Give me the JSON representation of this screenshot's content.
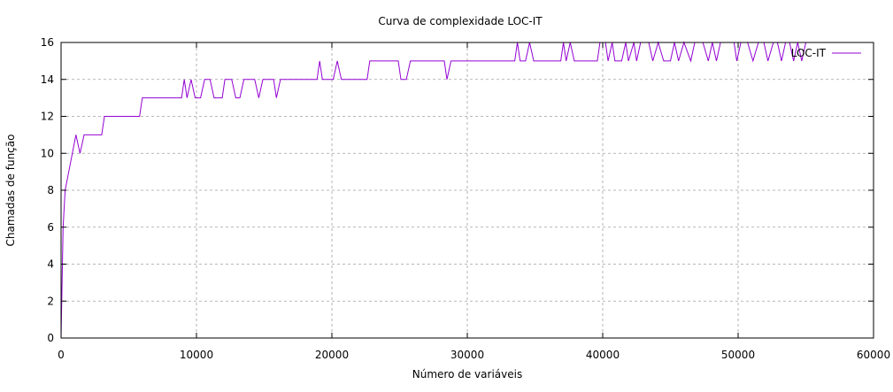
{
  "chart_data": {
    "type": "line",
    "title": "Curva de complexidade LOC-IT",
    "xlabel": "Número de variáveis",
    "ylabel": "Chamadas de função",
    "xlim": [
      0,
      60000
    ],
    "ylim": [
      0,
      16
    ],
    "xticks": [
      0,
      10000,
      20000,
      30000,
      40000,
      50000,
      60000
    ],
    "yticks": [
      0,
      2,
      4,
      6,
      8,
      10,
      12,
      14,
      16
    ],
    "xtick_labels": [
      "0",
      "10000",
      "20000",
      "30000",
      "40000",
      "50000",
      "60000"
    ],
    "ytick_labels": [
      "0",
      "2",
      "4",
      "6",
      "8",
      "10",
      "12",
      "14",
      "16"
    ],
    "grid": true,
    "legend_position": "top-right",
    "series": [
      {
        "name": "LOC-IT",
        "color": "#9400d3",
        "points": [
          [
            0,
            0
          ],
          [
            150,
            6
          ],
          [
            300,
            8
          ],
          [
            700,
            9.5
          ],
          [
            1100,
            11
          ],
          [
            1400,
            10
          ],
          [
            1700,
            11
          ],
          [
            3000,
            11
          ],
          [
            3200,
            12
          ],
          [
            5800,
            12
          ],
          [
            6000,
            13
          ],
          [
            8900,
            13
          ],
          [
            9100,
            14
          ],
          [
            9300,
            13
          ],
          [
            9600,
            14
          ],
          [
            9900,
            13
          ],
          [
            10300,
            13
          ],
          [
            10600,
            14
          ],
          [
            11000,
            14
          ],
          [
            11300,
            13
          ],
          [
            11900,
            13
          ],
          [
            12100,
            14
          ],
          [
            12600,
            14
          ],
          [
            12900,
            13
          ],
          [
            13200,
            13
          ],
          [
            13500,
            14
          ],
          [
            14300,
            14
          ],
          [
            14600,
            13
          ],
          [
            14900,
            14
          ],
          [
            15700,
            14
          ],
          [
            15900,
            13
          ],
          [
            16200,
            14
          ],
          [
            18900,
            14
          ],
          [
            19100,
            15
          ],
          [
            19300,
            14
          ],
          [
            20100,
            14
          ],
          [
            20400,
            15
          ],
          [
            20700,
            14
          ],
          [
            22600,
            14
          ],
          [
            22800,
            15
          ],
          [
            24900,
            15
          ],
          [
            25100,
            14
          ],
          [
            25500,
            14
          ],
          [
            25800,
            15
          ],
          [
            28300,
            15
          ],
          [
            28500,
            14
          ],
          [
            28800,
            15
          ],
          [
            33500,
            15
          ],
          [
            33700,
            16
          ],
          [
            33900,
            15
          ],
          [
            34300,
            15
          ],
          [
            34600,
            16
          ],
          [
            34900,
            15
          ],
          [
            36900,
            15
          ],
          [
            37100,
            16
          ],
          [
            37300,
            15
          ],
          [
            37600,
            16
          ],
          [
            37900,
            15
          ],
          [
            39600,
            15
          ],
          [
            39800,
            16
          ],
          [
            40200,
            16
          ],
          [
            40400,
            15
          ],
          [
            40700,
            16
          ],
          [
            40900,
            15
          ],
          [
            41400,
            15
          ],
          [
            41700,
            16
          ],
          [
            41900,
            15
          ],
          [
            42300,
            16
          ],
          [
            42500,
            15
          ],
          [
            42800,
            16
          ],
          [
            43400,
            16
          ],
          [
            43700,
            15
          ],
          [
            44100,
            16
          ],
          [
            44500,
            15
          ],
          [
            45000,
            15
          ],
          [
            45300,
            16
          ],
          [
            45600,
            15
          ],
          [
            46000,
            16
          ],
          [
            46500,
            15
          ],
          [
            46800,
            16
          ],
          [
            47400,
            16
          ],
          [
            47800,
            15
          ],
          [
            48100,
            16
          ],
          [
            48400,
            15
          ],
          [
            48700,
            16
          ],
          [
            49700,
            16
          ],
          [
            49900,
            15
          ],
          [
            50200,
            16
          ],
          [
            50700,
            16
          ],
          [
            51100,
            15
          ],
          [
            51500,
            16
          ],
          [
            51900,
            16
          ],
          [
            52200,
            15
          ],
          [
            52600,
            16
          ],
          [
            52900,
            16
          ],
          [
            53200,
            15
          ],
          [
            53500,
            16
          ],
          [
            53800,
            16
          ],
          [
            54100,
            15
          ],
          [
            54400,
            16
          ],
          [
            54700,
            15
          ],
          [
            55000,
            16
          ]
        ]
      }
    ]
  }
}
